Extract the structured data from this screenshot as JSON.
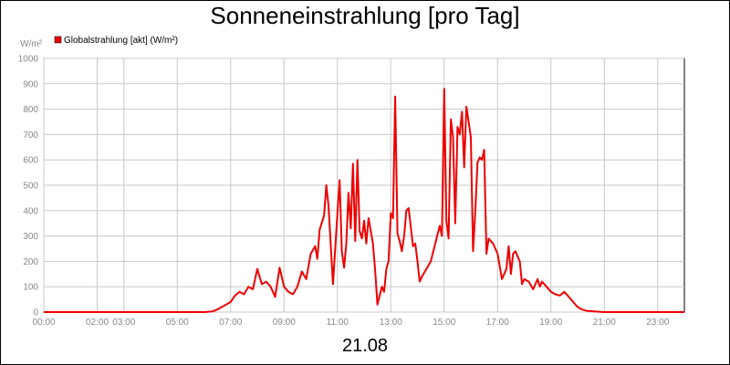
{
  "chart_data": {
    "type": "line",
    "title": "Sonneneinstrahlung [pro Tag]",
    "ylabel": "W/m²",
    "xlabel": "21.08",
    "ylim": [
      0,
      1000
    ],
    "yticks": [
      0,
      100,
      200,
      300,
      400,
      500,
      600,
      700,
      800,
      900,
      1000
    ],
    "xrange": [
      "00:00",
      "24:00"
    ],
    "xticks": [
      "00:00",
      "02:00",
      "03:00",
      "05:00",
      "07:00",
      "09:00",
      "11:00",
      "13:00",
      "15:00",
      "17:00",
      "19:00",
      "21:00",
      "23:00"
    ],
    "grid": true,
    "legend_position": "top-left",
    "series": [
      {
        "name": "Globalstrahlung [akt] (W/m²)",
        "color": "#ee0000",
        "points": [
          [
            "00:00",
            0
          ],
          [
            "01:00",
            0
          ],
          [
            "02:00",
            0
          ],
          [
            "03:00",
            0
          ],
          [
            "04:00",
            0
          ],
          [
            "05:00",
            0
          ],
          [
            "06:00",
            0
          ],
          [
            "06:20",
            3
          ],
          [
            "06:30",
            10
          ],
          [
            "06:40",
            20
          ],
          [
            "06:50",
            30
          ],
          [
            "07:00",
            40
          ],
          [
            "07:10",
            65
          ],
          [
            "07:20",
            80
          ],
          [
            "07:30",
            70
          ],
          [
            "07:40",
            100
          ],
          [
            "07:50",
            90
          ],
          [
            "08:00",
            170
          ],
          [
            "08:10",
            110
          ],
          [
            "08:20",
            120
          ],
          [
            "08:30",
            100
          ],
          [
            "08:40",
            60
          ],
          [
            "08:50",
            175
          ],
          [
            "09:00",
            100
          ],
          [
            "09:10",
            80
          ],
          [
            "09:20",
            70
          ],
          [
            "09:30",
            100
          ],
          [
            "09:40",
            160
          ],
          [
            "09:50",
            130
          ],
          [
            "10:00",
            230
          ],
          [
            "10:10",
            260
          ],
          [
            "10:15",
            210
          ],
          [
            "10:20",
            325
          ],
          [
            "10:30",
            380
          ],
          [
            "10:35",
            500
          ],
          [
            "10:40",
            420
          ],
          [
            "10:50",
            110
          ],
          [
            "11:00",
            390
          ],
          [
            "11:05",
            520
          ],
          [
            "11:10",
            240
          ],
          [
            "11:15",
            175
          ],
          [
            "11:20",
            270
          ],
          [
            "11:25",
            470
          ],
          [
            "11:30",
            330
          ],
          [
            "11:35",
            585
          ],
          [
            "11:40",
            280
          ],
          [
            "11:45",
            600
          ],
          [
            "11:50",
            320
          ],
          [
            "11:55",
            290
          ],
          [
            "12:00",
            360
          ],
          [
            "12:05",
            270
          ],
          [
            "12:10",
            370
          ],
          [
            "12:20",
            270
          ],
          [
            "12:25",
            160
          ],
          [
            "12:30",
            30
          ],
          [
            "12:40",
            100
          ],
          [
            "12:45",
            80
          ],
          [
            "12:50",
            170
          ],
          [
            "12:55",
            200
          ],
          [
            "13:00",
            390
          ],
          [
            "13:05",
            370
          ],
          [
            "13:10",
            850
          ],
          [
            "13:15",
            310
          ],
          [
            "13:20",
            280
          ],
          [
            "13:25",
            240
          ],
          [
            "13:30",
            300
          ],
          [
            "13:35",
            400
          ],
          [
            "13:40",
            410
          ],
          [
            "13:50",
            260
          ],
          [
            "13:55",
            270
          ],
          [
            "14:00",
            200
          ],
          [
            "14:05",
            120
          ],
          [
            "14:10",
            140
          ],
          [
            "14:20",
            170
          ],
          [
            "14:30",
            200
          ],
          [
            "14:40",
            270
          ],
          [
            "14:50",
            340
          ],
          [
            "14:55",
            300
          ],
          [
            "15:00",
            880
          ],
          [
            "15:05",
            360
          ],
          [
            "15:10",
            290
          ],
          [
            "15:15",
            760
          ],
          [
            "15:20",
            690
          ],
          [
            "15:25",
            350
          ],
          [
            "15:30",
            730
          ],
          [
            "15:35",
            700
          ],
          [
            "15:40",
            790
          ],
          [
            "15:45",
            570
          ],
          [
            "15:50",
            810
          ],
          [
            "15:55",
            750
          ],
          [
            "16:00",
            690
          ],
          [
            "16:05",
            240
          ],
          [
            "16:10",
            400
          ],
          [
            "16:15",
            590
          ],
          [
            "16:20",
            610
          ],
          [
            "16:25",
            600
          ],
          [
            "16:30",
            640
          ],
          [
            "16:35",
            230
          ],
          [
            "16:40",
            290
          ],
          [
            "16:50",
            270
          ],
          [
            "17:00",
            230
          ],
          [
            "17:10",
            130
          ],
          [
            "17:20",
            170
          ],
          [
            "17:25",
            260
          ],
          [
            "17:30",
            150
          ],
          [
            "17:35",
            230
          ],
          [
            "17:40",
            240
          ],
          [
            "17:50",
            200
          ],
          [
            "17:55",
            110
          ],
          [
            "18:00",
            130
          ],
          [
            "18:10",
            120
          ],
          [
            "18:20",
            90
          ],
          [
            "18:30",
            130
          ],
          [
            "18:35",
            100
          ],
          [
            "18:40",
            120
          ],
          [
            "18:50",
            100
          ],
          [
            "19:00",
            80
          ],
          [
            "19:10",
            70
          ],
          [
            "19:20",
            65
          ],
          [
            "19:30",
            80
          ],
          [
            "19:40",
            60
          ],
          [
            "19:50",
            40
          ],
          [
            "20:00",
            20
          ],
          [
            "20:10",
            10
          ],
          [
            "20:20",
            5
          ],
          [
            "20:40",
            2
          ],
          [
            "21:00",
            0
          ],
          [
            "22:00",
            0
          ],
          [
            "23:00",
            0
          ],
          [
            "24:00",
            0
          ]
        ]
      }
    ]
  }
}
